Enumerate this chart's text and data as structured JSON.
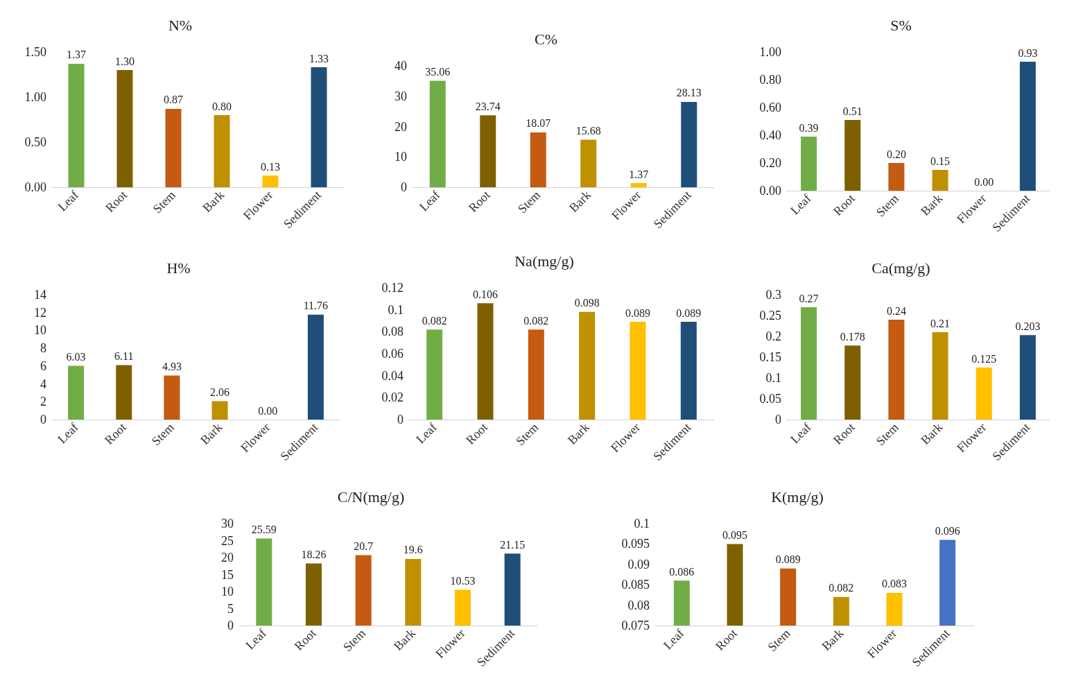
{
  "chart_data": [
    {
      "type": "bar",
      "title": "N%",
      "categories": [
        "Leaf",
        "Root",
        "Stem",
        "Bark",
        "Flower",
        "Sediment"
      ],
      "values": [
        1.37,
        1.3,
        0.87,
        0.8,
        0.13,
        1.33
      ],
      "colors": [
        "#70ad47",
        "#7f6000",
        "#c55a11",
        "#bf9000",
        "#ffc000",
        "#1f4e79"
      ],
      "value_labels": [
        "1.37",
        "1.30",
        "0.87",
        "0.80",
        "0.13",
        "1.33"
      ],
      "ylim": [
        0,
        1.5
      ],
      "yticks": [
        {
          "value": 0,
          "label": "0.00"
        },
        {
          "value": 0.5,
          "label": "0.50"
        },
        {
          "value": 1,
          "label": "1.00"
        },
        {
          "value": 1.5,
          "label": "1.50"
        }
      ]
    },
    {
      "type": "bar",
      "title": "C%",
      "categories": [
        "Leaf",
        "Root",
        "Stem",
        "Bark",
        "Flower",
        "Sediment"
      ],
      "values": [
        35.06,
        23.74,
        18.07,
        15.68,
        1.37,
        28.13
      ],
      "colors": [
        "#70ad47",
        "#7f6000",
        "#c55a11",
        "#bf9000",
        "#ffc000",
        "#1f4e79"
      ],
      "value_labels": [
        "35.06",
        "23.74",
        "18.07",
        "15.68",
        "1.37",
        "28.13"
      ],
      "ylim": [
        0,
        40
      ],
      "yticks": [
        0,
        10,
        20,
        30,
        40
      ]
    },
    {
      "type": "bar",
      "title": "S%",
      "categories": [
        "Leaf",
        "Root",
        "Stem",
        "Bark",
        "Flower",
        "Sediment"
      ],
      "values": [
        0.39,
        0.51,
        0.2,
        0.15,
        0,
        0.93
      ],
      "colors": [
        "#70ad47",
        "#7f6000",
        "#c55a11",
        "#bf9000",
        "#ffc000",
        "#1f4e79"
      ],
      "value_labels": [
        "0.39",
        "0.51",
        "0.20",
        "0.15",
        "0.00",
        "0.93"
      ],
      "ylim": [
        0,
        1
      ],
      "yticks": [
        {
          "value": 0,
          "label": "0.00"
        },
        {
          "value": 0.2,
          "label": "0.20"
        },
        {
          "value": 0.4,
          "label": "0.40"
        },
        {
          "value": 0.6,
          "label": "0.60"
        },
        {
          "value": 0.8,
          "label": "0.80"
        },
        {
          "value": 1,
          "label": "1.00"
        }
      ]
    },
    {
      "type": "bar",
      "title": "H%",
      "categories": [
        "Leaf",
        "Root",
        "Stem",
        "Bark",
        "Flower",
        "Sediment"
      ],
      "values": [
        6.03,
        6.11,
        4.93,
        2.06,
        0,
        11.76
      ],
      "colors": [
        "#70ad47",
        "#7f6000",
        "#c55a11",
        "#bf9000",
        "#ffc000",
        "#1f4e79"
      ],
      "value_labels": [
        "6.03",
        "6.11",
        "4.93",
        "2.06",
        "0.00",
        "11.76"
      ],
      "ylim": [
        0,
        14
      ],
      "yticks": [
        0,
        2,
        4,
        6,
        8,
        10,
        12,
        14
      ]
    },
    {
      "type": "bar",
      "title": "Na(mg/g)",
      "categories": [
        "Leaf",
        "Root",
        "Stem",
        "Bark",
        "Flower",
        "Sediment"
      ],
      "values": [
        0.082,
        0.106,
        0.082,
        0.098,
        0.089,
        0.089
      ],
      "colors": [
        "#70ad47",
        "#7f6000",
        "#c55a11",
        "#bf9000",
        "#ffc000",
        "#1f4e79"
      ],
      "value_labels": [
        "0.082",
        "0.106",
        "0.082",
        "0.098",
        "0.089",
        "0.089"
      ],
      "ylim": [
        0,
        0.12
      ],
      "yticks": [
        0,
        0.02,
        0.04,
        0.06,
        0.08,
        0.1,
        0.12
      ]
    },
    {
      "type": "bar",
      "title": "Ca(mg/g)",
      "categories": [
        "Leaf",
        "Root",
        "Stem",
        "Bark",
        "Flower",
        "Sediment"
      ],
      "values": [
        0.27,
        0.178,
        0.24,
        0.21,
        0.125,
        0.203
      ],
      "colors": [
        "#70ad47",
        "#7f6000",
        "#c55a11",
        "#bf9000",
        "#ffc000",
        "#1f4e79"
      ],
      "value_labels": [
        "0.27",
        "0.178",
        "0.24",
        "0.21",
        "0.125",
        "0.203"
      ],
      "ylim": [
        0,
        0.3
      ],
      "yticks": [
        0,
        0.05,
        0.1,
        0.15,
        0.2,
        0.25,
        0.3
      ]
    },
    {
      "type": "bar",
      "title": "C/N(mg/g)",
      "categories": [
        "Leaf",
        "Root",
        "Stem",
        "Bark",
        "Flower",
        "Sediment"
      ],
      "values": [
        25.59,
        18.26,
        20.7,
        19.6,
        10.53,
        21.15
      ],
      "colors": [
        "#70ad47",
        "#7f6000",
        "#c55a11",
        "#bf9000",
        "#ffc000",
        "#1f4e79"
      ],
      "value_labels": [
        "25.59",
        "18.26",
        "20.7",
        "19.6",
        "10.53",
        "21.15"
      ],
      "ylim": [
        0,
        30
      ],
      "yticks": [
        0,
        5,
        10,
        15,
        20,
        25,
        30
      ]
    },
    {
      "type": "bar",
      "title": "K(mg/g)",
      "categories": [
        "Leaf",
        "Root",
        "Stem",
        "Bark",
        "Flower",
        "Sediment"
      ],
      "values": [
        0.086,
        0.095,
        0.089,
        0.082,
        0.083,
        0.096
      ],
      "colors": [
        "#70ad47",
        "#7f6000",
        "#c55a11",
        "#bf9000",
        "#ffc000",
        "#4472c4"
      ],
      "value_labels": [
        "0.086",
        "0.095",
        "0.089",
        "0.082",
        "0.083",
        "0.096"
      ],
      "ylim": [
        0.075,
        0.1
      ],
      "yticks": [
        0.075,
        0.08,
        0.085,
        0.09,
        0.095,
        0.1
      ]
    }
  ]
}
